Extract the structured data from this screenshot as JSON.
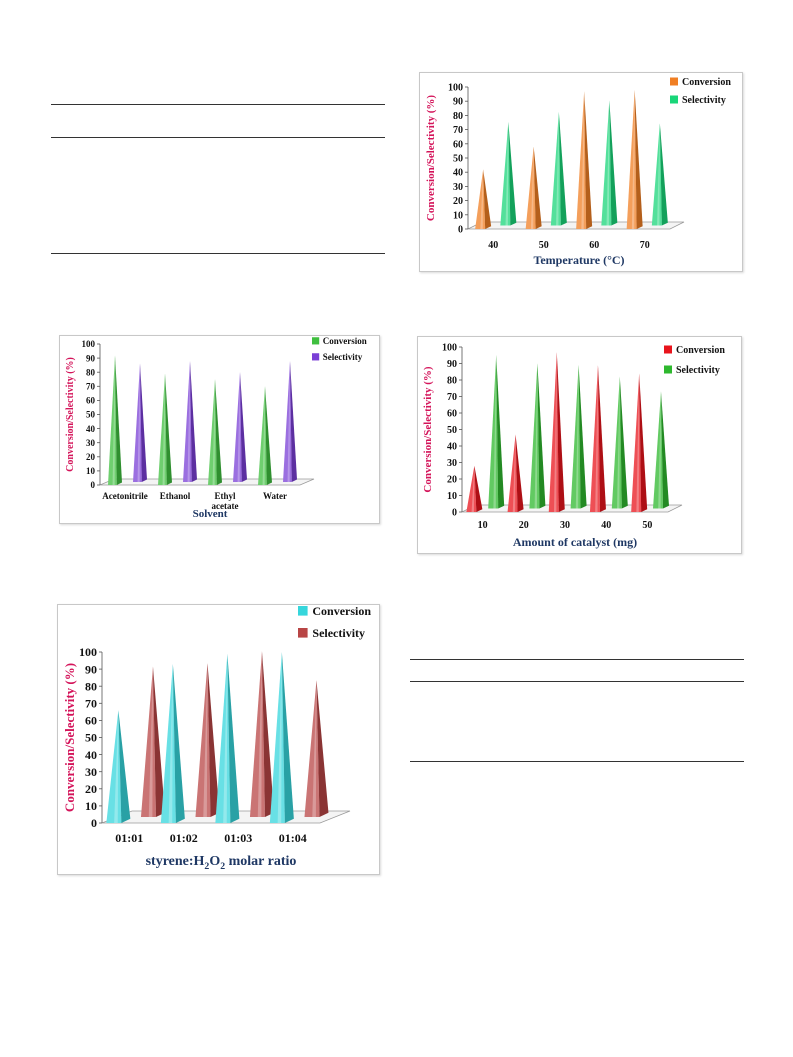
{
  "charts": [
    {
      "id": "temperature",
      "chart_data": {
        "type": "bar",
        "categories": [
          "40",
          "50",
          "60",
          "70"
        ],
        "series": [
          {
            "name": "Conversion",
            "values": [
              42,
              58,
              97,
              98
            ],
            "color": "#f07f24"
          },
          {
            "name": "Selectivity",
            "values": [
              73,
              80,
              88,
              72
            ],
            "color": "#19d679"
          }
        ],
        "title": "",
        "xlabel": "Temperature (°C)",
        "ylabel": "Conversion/Selectivity (%)",
        "yticks": [
          "0",
          "10",
          "20",
          "30",
          "40",
          "50",
          "60",
          "70",
          "80",
          "90",
          "100"
        ],
        "ylim": [
          0,
          100
        ],
        "grid": false,
        "legend": "top-right"
      }
    },
    {
      "id": "solvent",
      "chart_data": {
        "type": "bar",
        "categories": [
          "Acetonitrile",
          "Ethanol",
          "Ethyl acetate",
          "Water"
        ],
        "series": [
          {
            "name": "Conversion",
            "values": [
              92,
              79,
              75,
              70
            ],
            "color": "#3fbf3f"
          },
          {
            "name": "Selectivity",
            "values": [
              84,
              86,
              78,
              86
            ],
            "color": "#7a3fd6"
          }
        ],
        "title": "",
        "xlabel": "Solvent",
        "ylabel": "Conversion/Selectivity (%)",
        "yticks": [
          "0",
          "10",
          "20",
          "30",
          "40",
          "50",
          "60",
          "70",
          "80",
          "90",
          "100"
        ],
        "ylim": [
          0,
          100
        ],
        "grid": false,
        "legend": "top-right"
      }
    },
    {
      "id": "catalyst",
      "chart_data": {
        "type": "bar",
        "categories": [
          "10",
          "20",
          "30",
          "40",
          "50"
        ],
        "series": [
          {
            "name": "Conversion",
            "values": [
              28,
              47,
              97,
              89,
              84
            ],
            "color": "#e8141c"
          },
          {
            "name": "Selectivity",
            "values": [
              93,
              88,
              87,
              80,
              71
            ],
            "color": "#2eb82e"
          }
        ],
        "title": "",
        "xlabel": "Amount of catalyst (mg)",
        "ylabel": "Conversion/Selectivity (%)",
        "yticks": [
          "0",
          "10",
          "20",
          "30",
          "40",
          "50",
          "60",
          "70",
          "80",
          "90",
          "100"
        ],
        "ylim": [
          0,
          100
        ],
        "grid": false,
        "legend": "top-right"
      }
    },
    {
      "id": "molar_ratio",
      "chart_data": {
        "type": "bar",
        "categories": [
          "01:01",
          "01:02",
          "01:03",
          "01:04"
        ],
        "series": [
          {
            "name": "Conversion",
            "values": [
              66,
              93,
              99,
              100
            ],
            "color": "#36d6dc"
          },
          {
            "name": "Selectivity",
            "values": [
              88,
              90,
              97,
              80
            ],
            "color": "#b84545"
          }
        ],
        "title": "",
        "xlabel_prefix": "styrene:H",
        "xlabel_sub": "2",
        "xlabel_mid": "O",
        "xlabel_sub2": "2",
        "xlabel_suffix": " molar ratio",
        "ylabel": "Conversion/Selectivity (%)",
        "yticks": [
          "0",
          "10",
          "20",
          "30",
          "40",
          "50",
          "60",
          "70",
          "80",
          "90",
          "100"
        ],
        "ylim": [
          0,
          100
        ],
        "grid": false,
        "legend": "top-right"
      }
    }
  ]
}
